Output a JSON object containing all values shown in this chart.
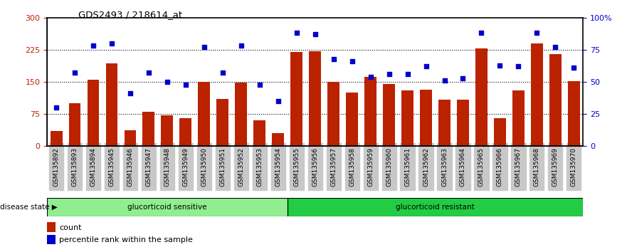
{
  "title": "GDS2493 / 218614_at",
  "samples": [
    "GSM135892",
    "GSM135893",
    "GSM135894",
    "GSM135945",
    "GSM135946",
    "GSM135947",
    "GSM135948",
    "GSM135949",
    "GSM135950",
    "GSM135951",
    "GSM135952",
    "GSM135953",
    "GSM135954",
    "GSM135955",
    "GSM135956",
    "GSM135957",
    "GSM135958",
    "GSM135959",
    "GSM135960",
    "GSM135961",
    "GSM135962",
    "GSM135963",
    "GSM135964",
    "GSM135965",
    "GSM135966",
    "GSM135967",
    "GSM135968",
    "GSM135969",
    "GSM135970"
  ],
  "counts": [
    35,
    100,
    155,
    193,
    37,
    80,
    72,
    65,
    150,
    110,
    148,
    60,
    30,
    220,
    222,
    150,
    125,
    162,
    145,
    130,
    132,
    108,
    108,
    228,
    65,
    130,
    240,
    215,
    152
  ],
  "percentile_ranks_pct": [
    30,
    57,
    78,
    80,
    41,
    57,
    50,
    48,
    77,
    57,
    78,
    48,
    35,
    88,
    87,
    68,
    66,
    54,
    56,
    56,
    62,
    51,
    53,
    88,
    63,
    62,
    88,
    77,
    61
  ],
  "group1_label": "glucorticoid sensitive",
  "group2_label": "glucorticoid resistant",
  "group1_count": 13,
  "group2_count": 16,
  "bar_color": "#BB2200",
  "scatter_color": "#0000CC",
  "group1_bg": "#90EE90",
  "group2_bg": "#22CC44",
  "tick_bg": "#C8C8C8",
  "ylim_left": [
    0,
    300
  ],
  "ylim_right": [
    0,
    100
  ],
  "yticks_left": [
    0,
    75,
    150,
    225,
    300
  ],
  "yticks_right": [
    0,
    25,
    50,
    75,
    100
  ],
  "hlines": [
    75,
    150,
    225
  ],
  "legend_count_label": "count",
  "legend_pct_label": "percentile rank within the sample"
}
